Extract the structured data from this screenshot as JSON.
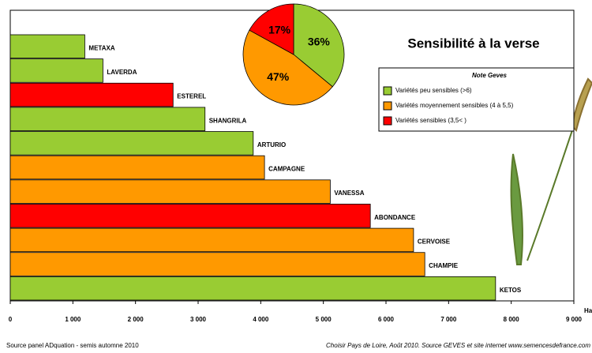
{
  "chart_data": [
    {
      "type": "bar",
      "categories": [
        "METAXA",
        "LAVERDA",
        "ESTEREL",
        "SHANGRILA",
        "ARTURIO",
        "CAMPAGNE",
        "VANESSA",
        "ABONDANCE",
        "CERVOISE",
        "CHAMPIE",
        "KETOS"
      ],
      "values": [
        1190,
        1480,
        2600,
        3110,
        3880,
        4060,
        5110,
        5750,
        6440,
        6620,
        7750
      ],
      "colors": [
        "#99cc33",
        "#99cc33",
        "#ff0000",
        "#99cc33",
        "#99cc33",
        "#ff9900",
        "#ff9900",
        "#ff0000",
        "#ff9900",
        "#ff9900",
        "#99cc33"
      ],
      "xlim": [
        0,
        9000
      ],
      "xticks": [
        0,
        {
          "value": 1000,
          "label": "1 000"
        },
        {
          "value": 2000,
          "label": "2 000"
        },
        {
          "value": 3000,
          "label": "3 000"
        },
        {
          "value": 4000,
          "label": "4 000"
        },
        {
          "value": 5000,
          "label": "5 000"
        },
        {
          "value": 6000,
          "label": "6 000"
        },
        {
          "value": 7000,
          "label": "7 000"
        },
        {
          "value": 8000,
          "label": "8 000"
        },
        {
          "value": 9000,
          "label": "9 000"
        }
      ],
      "x_label": "Ha",
      "source_left": "Source panel ADquation  - semis automne 2010",
      "source_right": "Choisir Pays de Loire, Août 2010. Source GEVES et site internet www.semencesdefrance.com"
    },
    {
      "type": "pie",
      "title": "Sensibilité à la verse",
      "legend_title": "Note Geves",
      "categories": [
        "Variétés peu sensibles (>6)",
        "Variétés moyennement  sensibles (4 à 5,5)",
        "Variétés sensibles (3,5< )"
      ],
      "values": [
        36,
        47,
        17
      ],
      "value_labels": [
        "36%",
        "47%",
        "17%"
      ],
      "colors": [
        "#99cc33",
        "#ff9900",
        "#ff0000"
      ]
    }
  ]
}
